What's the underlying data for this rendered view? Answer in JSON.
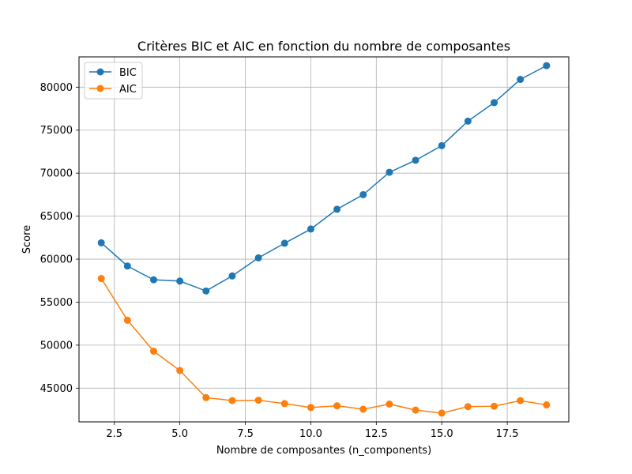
{
  "chart_data": {
    "type": "line",
    "title": "Critères BIC et AIC en fonction du nombre de composantes",
    "xlabel": "Nombre de composantes (n_components)",
    "ylabel": "Score",
    "x": [
      2,
      3,
      4,
      5,
      6,
      7,
      8,
      9,
      10,
      11,
      12,
      13,
      14,
      15,
      16,
      17,
      18,
      19
    ],
    "series": [
      {
        "name": "BIC",
        "color": "#1f77b4",
        "values": [
          61900,
          59200,
          57600,
          57450,
          56300,
          58050,
          60150,
          61850,
          63500,
          65800,
          67500,
          70100,
          71500,
          73200,
          76050,
          78200,
          80900,
          82500
        ]
      },
      {
        "name": "AIC",
        "color": "#ff7f0e",
        "values": [
          57750,
          52900,
          49300,
          47050,
          43900,
          43550,
          43600,
          43200,
          42750,
          42950,
          42550,
          43150,
          42450,
          42100,
          42850,
          42900,
          43550,
          43050
        ]
      }
    ],
    "xlim": [
      1.15,
      19.85
    ],
    "ylim": [
      41080,
      83520
    ],
    "xticks": [
      2.5,
      5.0,
      7.5,
      10.0,
      12.5,
      15.0,
      17.5
    ],
    "xtick_labels": [
      "2.5",
      "5.0",
      "7.5",
      "10.0",
      "12.5",
      "15.0",
      "17.5"
    ],
    "yticks": [
      45000,
      50000,
      55000,
      60000,
      65000,
      70000,
      75000,
      80000
    ],
    "ytick_labels": [
      "45000",
      "50000",
      "55000",
      "60000",
      "65000",
      "70000",
      "75000",
      "80000"
    ],
    "grid": true,
    "legend_position": "top-left"
  }
}
